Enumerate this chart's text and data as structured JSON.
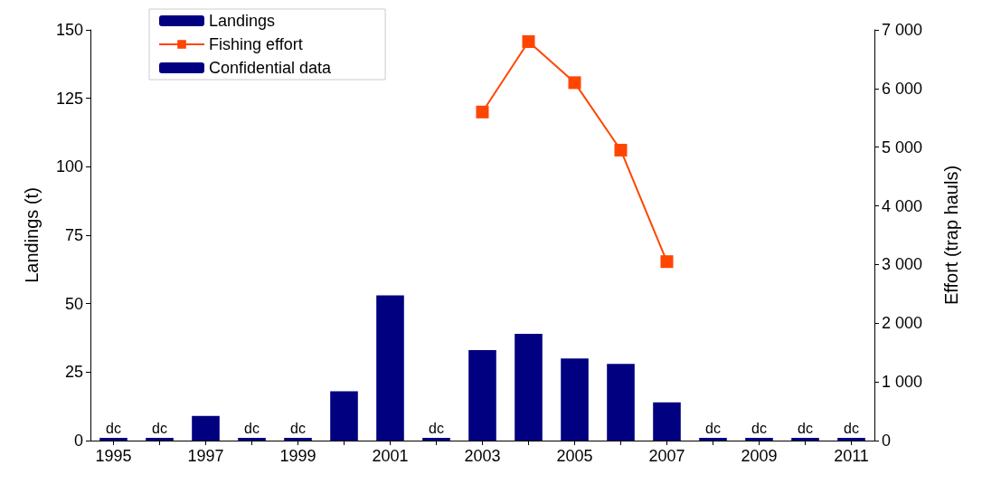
{
  "chart_data": {
    "type": "bar",
    "ylabel": "Landings (t)",
    "y2label": "Effort (trap hauls)",
    "categories": [
      "1995",
      null,
      "1997",
      null,
      "1999",
      null,
      "2001",
      null,
      "2003",
      null,
      "2005",
      null,
      "2007",
      null,
      "2009",
      null,
      "2011"
    ],
    "series": [
      {
        "name": "Landings",
        "color": "#000080",
        "values": [
          null,
          null,
          9,
          null,
          null,
          18,
          53,
          null,
          33,
          39,
          30,
          28,
          14,
          null,
          null,
          null,
          null
        ]
      },
      {
        "name": "Fishing effort",
        "type": "line",
        "axis": "y2",
        "color": "#ff4500",
        "values": [
          null,
          null,
          null,
          null,
          null,
          null,
          null,
          null,
          5600,
          6800,
          6100,
          4950,
          3050,
          null,
          null,
          null,
          null
        ]
      },
      {
        "name": "Confidential data",
        "color": "#000080",
        "values": [
          1,
          1,
          null,
          1,
          1,
          null,
          null,
          1,
          null,
          null,
          null,
          null,
          null,
          1,
          1,
          1,
          1
        ],
        "value_labels": [
          "dc",
          "dc",
          null,
          "dc",
          "dc",
          null,
          null,
          "dc",
          null,
          null,
          null,
          null,
          null,
          "dc",
          "dc",
          "dc",
          "dc"
        ]
      }
    ],
    "ylim": [
      0,
      150
    ],
    "yticks": [
      0,
      25,
      50,
      75,
      100,
      125,
      150
    ],
    "y2lim": [
      0,
      7000
    ],
    "y2ticks": [
      0,
      {
        "value": 1000,
        "label": "1 000"
      },
      {
        "value": 2000,
        "label": "2 000"
      },
      {
        "value": 3000,
        "label": "3 000"
      },
      {
        "value": 4000,
        "label": "4 000"
      },
      {
        "value": 5000,
        "label": "5 000"
      },
      {
        "value": 6000,
        "label": "6 000"
      },
      {
        "value": 7000,
        "label": "7 000"
      }
    ],
    "marker": "square",
    "grid": false,
    "legend": "top left"
  }
}
